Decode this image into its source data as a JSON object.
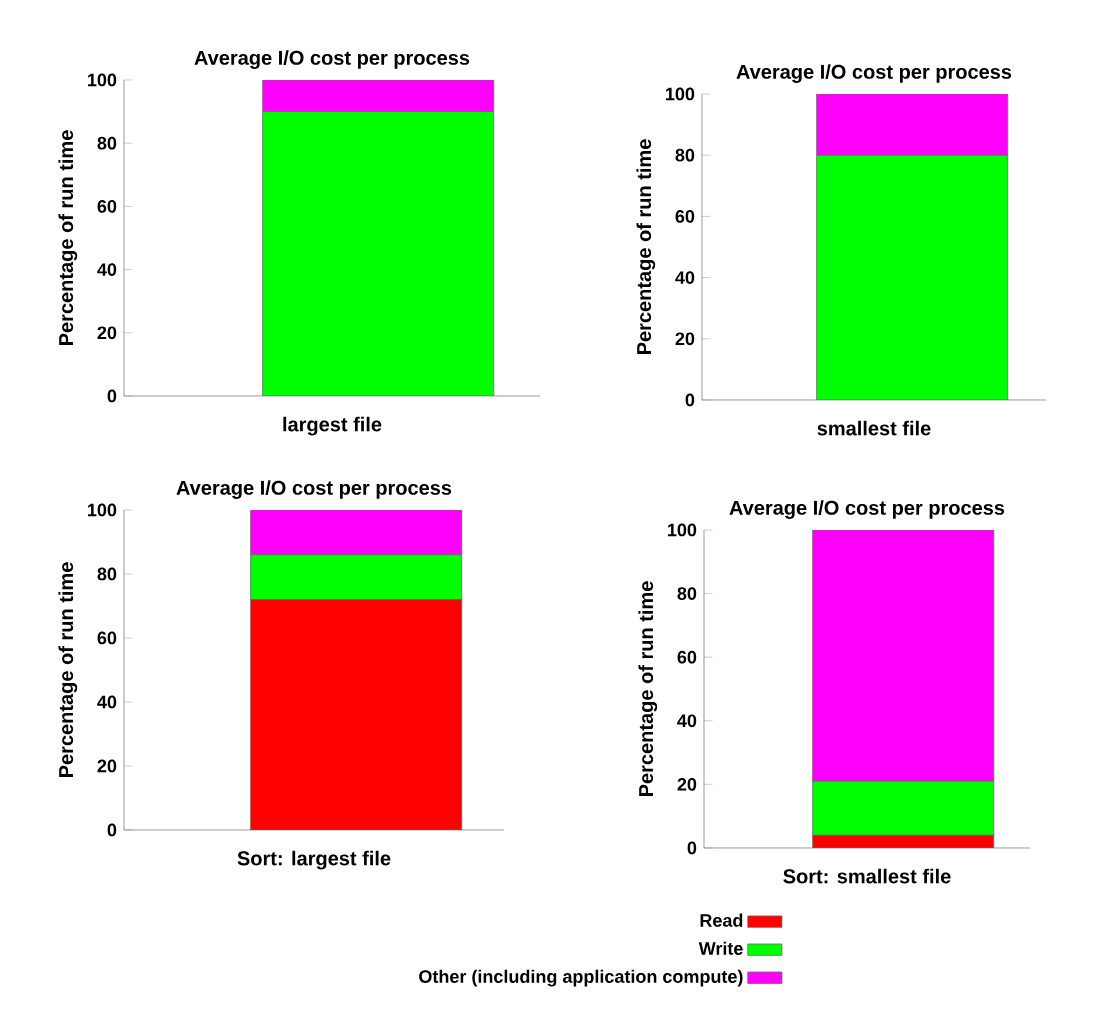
{
  "chart_data": [
    {
      "type": "bar",
      "stacked": true,
      "title": "Average I/O cost per process",
      "xlabel": "largest file",
      "ylabel": "Percentage of run time",
      "categories": [
        null
      ],
      "ylim": [
        0,
        100
      ],
      "yticks": [
        0,
        20,
        40,
        60,
        80,
        100
      ],
      "series": [
        {
          "color": "#ff0000",
          "values": [
            0
          ]
        },
        {
          "color": "#00ff00",
          "values": [
            90
          ]
        },
        {
          "color": "#ff00ff",
          "values": [
            10
          ]
        }
      ]
    },
    {
      "type": "bar",
      "stacked": true,
      "title": "Average I/O cost per process",
      "xlabel": "smallest file",
      "ylabel": "Percentage of run time",
      "categories": [
        null
      ],
      "ylim": [
        0,
        100
      ],
      "yticks": [
        0,
        20,
        40,
        60,
        80,
        100
      ],
      "series": [
        {
          "color": "#ff0000",
          "values": [
            0
          ]
        },
        {
          "color": "#00ff00",
          "values": [
            80
          ]
        },
        {
          "color": "#ff00ff",
          "values": [
            20
          ]
        }
      ]
    },
    {
      "type": "bar",
      "stacked": true,
      "title": "Average I/O cost per process",
      "xlabel": "Sort: largest file",
      "ylabel": "Percentage of run time",
      "categories": [
        null
      ],
      "ylim": [
        0,
        100
      ],
      "yticks": [
        0,
        20,
        40,
        60,
        80,
        100
      ],
      "series": [
        {
          "color": "#ff0000",
          "values": [
            72
          ]
        },
        {
          "color": "#00ff00",
          "values": [
            14
          ]
        },
        {
          "color": "#ff00ff",
          "values": [
            14
          ]
        }
      ]
    },
    {
      "type": "bar",
      "stacked": true,
      "title": "Average I/O cost per process",
      "xlabel": "Sort: smallest file",
      "ylabel": "Percentage of run time",
      "categories": [
        null
      ],
      "ylim": [
        0,
        100
      ],
      "yticks": [
        0,
        20,
        40,
        60,
        80,
        100
      ],
      "legend": "bottom",
      "series": [
        {
          "name": "Read",
          "color": "#ff0000",
          "values": [
            4
          ]
        },
        {
          "name": "Write",
          "color": "#00ff00",
          "values": [
            17
          ]
        },
        {
          "name": "Other (including application compute)",
          "color": "#ff00ff",
          "values": [
            79
          ]
        }
      ]
    }
  ]
}
